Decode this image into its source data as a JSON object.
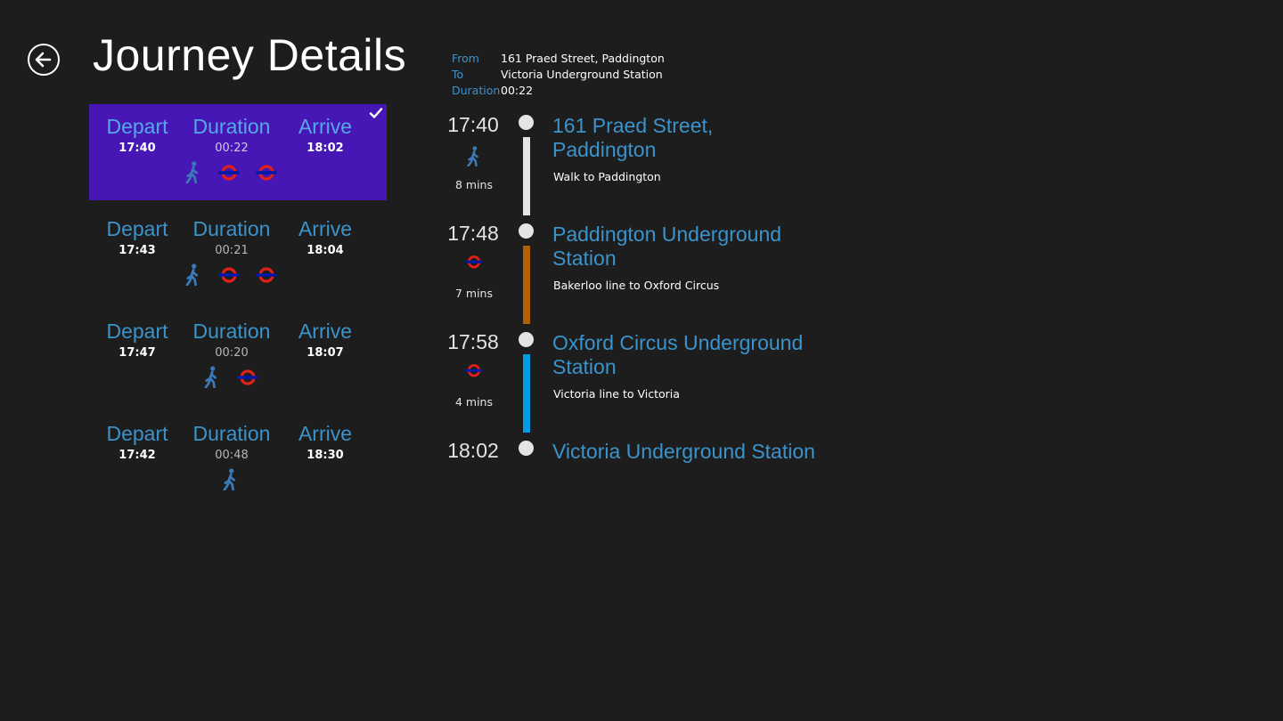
{
  "header": {
    "title": "Journey Details",
    "back_icon": "arrow-left-circle-icon"
  },
  "colors": {
    "accent": "#3b93cc",
    "selected": "#4617b4",
    "walk": "#3a7ab8",
    "underground_red": "#e32017",
    "underground_blue": "#0019a8",
    "bakerloo": "#b26300",
    "victoria": "#039be5",
    "walk_bar": "#e4e4e4"
  },
  "options": [
    {
      "depart_label": "Depart",
      "depart": "17:40",
      "duration_label": "Duration",
      "duration": "00:22",
      "arrive_label": "Arrive",
      "arrive": "18:02",
      "selected": true,
      "modes": [
        "walk-icon",
        "underground-icon",
        "underground-icon"
      ]
    },
    {
      "depart_label": "Depart",
      "depart": "17:43",
      "duration_label": "Duration",
      "duration": "00:21",
      "arrive_label": "Arrive",
      "arrive": "18:04",
      "selected": false,
      "modes": [
        "walk-icon",
        "underground-icon",
        "underground-icon"
      ]
    },
    {
      "depart_label": "Depart",
      "depart": "17:47",
      "duration_label": "Duration",
      "duration": "00:20",
      "arrive_label": "Arrive",
      "arrive": "18:07",
      "selected": false,
      "modes": [
        "walk-icon",
        "underground-icon"
      ]
    },
    {
      "depart_label": "Depart",
      "depart": "17:42",
      "duration_label": "Duration",
      "duration": "00:48",
      "arrive_label": "Arrive",
      "arrive": "18:30",
      "selected": false,
      "modes": [
        "walk-icon"
      ]
    }
  ],
  "summary": {
    "from_label": "From",
    "from": "161 Praed Street, Paddington",
    "to_label": "To",
    "to": "Victoria Underground Station",
    "duration_label": "Duration",
    "duration": "00:22"
  },
  "timeline": [
    {
      "time": "17:40",
      "name": "161 Praed Street, Paddington",
      "leg_icon": "walk-icon",
      "leg_mins": "8 mins",
      "leg_desc": "Walk to Paddington",
      "bar_color": "#e4e4e4"
    },
    {
      "time": "17:48",
      "name": "Paddington Underground Station",
      "leg_icon": "underground-icon",
      "leg_mins": "7 mins",
      "leg_desc": "Bakerloo line to Oxford Circus",
      "bar_color": "#b26300"
    },
    {
      "time": "17:58",
      "name": "Oxford Circus Underground Station",
      "leg_icon": "underground-icon",
      "leg_mins": "4 mins",
      "leg_desc": "Victoria line to Victoria",
      "bar_color": "#039be5"
    },
    {
      "time": "18:02",
      "name": "Victoria Underground Station",
      "leg_icon": null,
      "leg_mins": null,
      "leg_desc": null,
      "bar_color": null
    }
  ]
}
